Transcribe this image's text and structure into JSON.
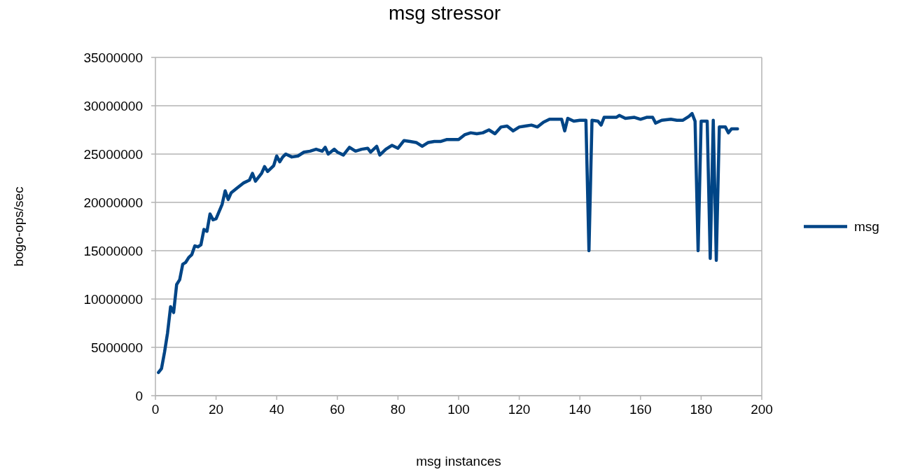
{
  "chart_data": {
    "type": "line",
    "title": "msg stressor",
    "xlabel": "msg instances",
    "ylabel": "bogo-ops/sec",
    "xlim": [
      0,
      200
    ],
    "xticks": [
      0,
      20,
      40,
      60,
      80,
      100,
      120,
      140,
      160,
      180,
      200
    ],
    "ylim": [
      0,
      35000000
    ],
    "yticks": [
      0,
      5000000,
      10000000,
      15000000,
      20000000,
      25000000,
      30000000,
      35000000
    ],
    "grid": "y",
    "legend": "right",
    "marker": "none",
    "line_style": "solid",
    "series": [
      {
        "name": "msg",
        "color": "#004586",
        "x": [
          1,
          2,
          3,
          4,
          5,
          6,
          7,
          8,
          9,
          10,
          11,
          12,
          13,
          14,
          15,
          16,
          17,
          18,
          19,
          20,
          22,
          23,
          24,
          25,
          27,
          29,
          31,
          32,
          33,
          35,
          36,
          37,
          39,
          40,
          41,
          42,
          43,
          45,
          47,
          49,
          51,
          53,
          55,
          56,
          57,
          59,
          60,
          62,
          64,
          66,
          68,
          70,
          71,
          73,
          74,
          76,
          78,
          80,
          82,
          84,
          86,
          88,
          90,
          92,
          94,
          96,
          98,
          100,
          102,
          104,
          106,
          108,
          110,
          112,
          114,
          116,
          118,
          120,
          122,
          124,
          126,
          128,
          130,
          134,
          135,
          136,
          138,
          140,
          142,
          143,
          144,
          146,
          147,
          148,
          150,
          152,
          153,
          155,
          158,
          160,
          162,
          164,
          165,
          167,
          170,
          172,
          174,
          176,
          177,
          178,
          179,
          180,
          182,
          183,
          184,
          185,
          186,
          188,
          189,
          190,
          192
        ],
        "values": [
          2400000,
          2800000,
          4500000,
          6500000,
          9200000,
          8600000,
          11500000,
          12000000,
          13600000,
          13800000,
          14300000,
          14600000,
          15500000,
          15400000,
          15600000,
          17200000,
          17000000,
          18800000,
          18200000,
          18300000,
          19800000,
          21200000,
          20300000,
          21000000,
          21500000,
          22000000,
          22300000,
          23000000,
          22200000,
          23000000,
          23700000,
          23200000,
          23800000,
          24800000,
          24200000,
          24700000,
          25000000,
          24700000,
          24800000,
          25200000,
          25300000,
          25500000,
          25300000,
          25700000,
          25000000,
          25500000,
          25200000,
          24900000,
          25700000,
          25300000,
          25500000,
          25600000,
          25200000,
          25800000,
          24900000,
          25500000,
          25900000,
          25600000,
          26400000,
          26300000,
          26200000,
          25800000,
          26200000,
          26300000,
          26300000,
          26500000,
          26500000,
          26500000,
          27000000,
          27200000,
          27100000,
          27200000,
          27500000,
          27100000,
          27800000,
          27900000,
          27400000,
          27800000,
          27900000,
          28000000,
          27800000,
          28300000,
          28600000,
          28600000,
          27400000,
          28700000,
          28400000,
          28500000,
          28500000,
          15000000,
          28500000,
          28400000,
          28000000,
          28800000,
          28800000,
          28800000,
          29000000,
          28700000,
          28800000,
          28600000,
          28800000,
          28800000,
          28200000,
          28500000,
          28600000,
          28500000,
          28500000,
          28900000,
          29200000,
          28400000,
          15000000,
          28400000,
          28400000,
          14200000,
          28500000,
          14000000,
          27800000,
          27800000,
          27200000,
          27600000,
          27600000
        ]
      }
    ]
  }
}
